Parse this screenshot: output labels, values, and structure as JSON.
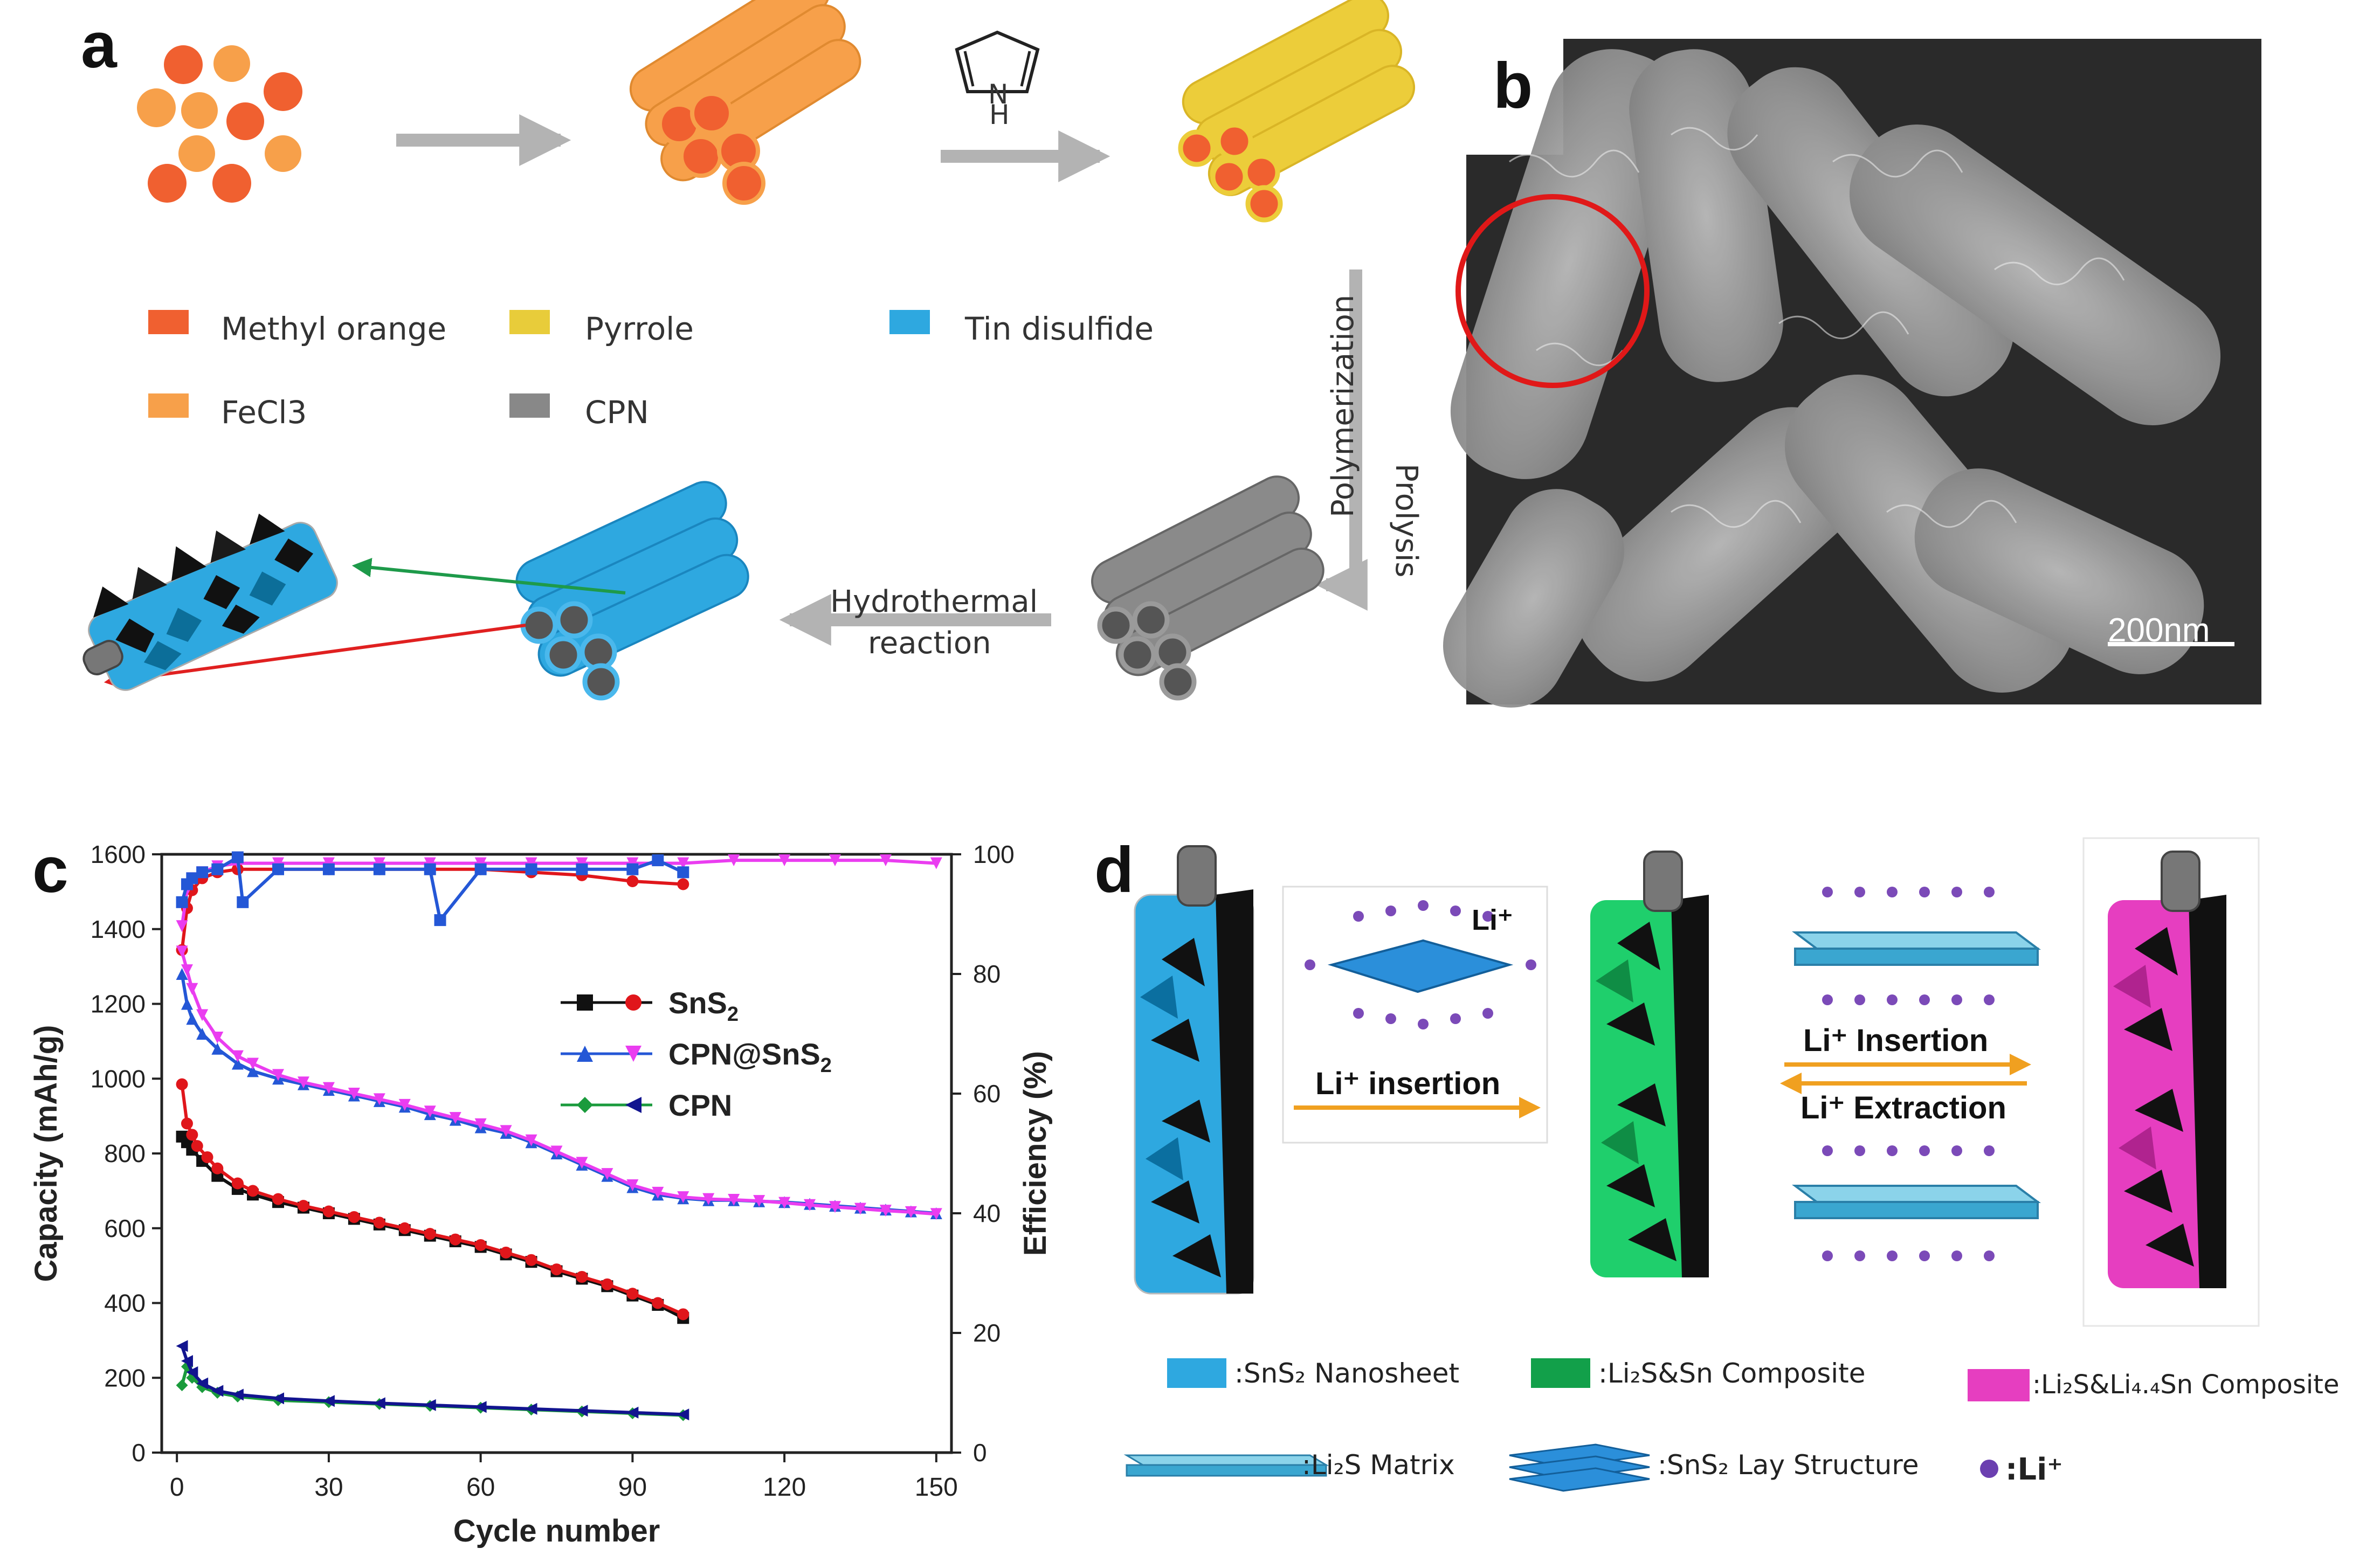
{
  "panel_letters": {
    "a": "a",
    "b": "b",
    "c": "c",
    "d": "d"
  },
  "panel_a": {
    "legend": [
      {
        "label": "Methyl orange",
        "color": "#f06030"
      },
      {
        "label": "Pyrrole",
        "color": "#e8cc3a"
      },
      {
        "label": "Tin disulfide",
        "color": "#2ea8e0"
      },
      {
        "label": "FeCl3",
        "color": "#f7a04a"
      },
      {
        "label": "CPN",
        "color": "#888888"
      }
    ],
    "pyrrole_label": "H",
    "pyrrole_label_n": "N",
    "step_vertical_1": "Polymerization",
    "step_vertical_2": "Prolysis",
    "step_hydro_1": "Hydrothermal",
    "step_hydro_2": "reaction"
  },
  "panel_b": {
    "scale_bar": "200nm"
  },
  "chart_data": {
    "type": "scatter",
    "xlabel": "Cycle number",
    "ylabel": "Capacity (mAh/g)",
    "y2label": "Efficiency (%)",
    "xlim": [
      -3,
      153
    ],
    "ylim": [
      0,
      1600
    ],
    "y2lim": [
      0,
      100
    ],
    "x_ticks": [
      "0",
      "30",
      "60",
      "90",
      "120",
      "150"
    ],
    "y_ticks": [
      "0",
      "200",
      "400",
      "600",
      "800",
      "1000",
      "1200",
      "1400",
      "1600"
    ],
    "y2_ticks": [
      "0",
      "20",
      "40",
      "60",
      "80",
      "100"
    ],
    "legend": [
      {
        "label_main": "SnS",
        "label_sub": "2",
        "colors": [
          "#111111",
          "#e0161b"
        ],
        "markers": [
          "square",
          "circle"
        ]
      },
      {
        "label_main": "CPN@SnS",
        "label_sub": "2",
        "colors": [
          "#2457d6",
          "#ea3df0"
        ],
        "markers": [
          "triangle-up",
          "triangle-down"
        ]
      },
      {
        "label_main": "CPN",
        "label_sub": "",
        "colors": [
          "#1a9b3c",
          "#12148f"
        ],
        "markers": [
          "diamond",
          "triangle-left"
        ]
      }
    ],
    "series": [
      {
        "name": "SnS2 capacity",
        "axis": "left",
        "color": "#111111",
        "marker": "square",
        "x": [
          1,
          2,
          3,
          5,
          8,
          12,
          15,
          20,
          25,
          30,
          35,
          40,
          45,
          50,
          55,
          60,
          65,
          70,
          75,
          80,
          85,
          90,
          95,
          100
        ],
        "y": [
          845,
          830,
          810,
          780,
          740,
          705,
          690,
          670,
          655,
          640,
          625,
          610,
          595,
          580,
          565,
          550,
          530,
          510,
          485,
          465,
          445,
          420,
          395,
          360
        ]
      },
      {
        "name": "SnS2 capacity (charge)",
        "axis": "left",
        "color": "#e0161b",
        "marker": "circle",
        "x": [
          1,
          2,
          3,
          4,
          6,
          8,
          12,
          15,
          20,
          25,
          30,
          35,
          40,
          45,
          50,
          55,
          60,
          65,
          70,
          75,
          80,
          85,
          90,
          95,
          100
        ],
        "y": [
          985,
          880,
          850,
          820,
          790,
          760,
          720,
          700,
          678,
          660,
          645,
          630,
          615,
          600,
          585,
          570,
          555,
          535,
          515,
          490,
          470,
          450,
          425,
          400,
          370
        ]
      },
      {
        "name": "SnS2 efficiency",
        "axis": "right",
        "color": "#e0161b",
        "marker": "circle",
        "x": [
          1,
          2,
          3,
          5,
          8,
          12,
          20,
          30,
          40,
          50,
          60,
          70,
          80,
          90,
          100
        ],
        "y": [
          84,
          91,
          94,
          96,
          97,
          97.5,
          97.5,
          97.5,
          97.5,
          97.5,
          97.5,
          97,
          96.5,
          95.5,
          95
        ]
      },
      {
        "name": "CPN@SnS2 capacity",
        "axis": "left",
        "color": "#2457d6",
        "marker": "triangle-up",
        "x": [
          1,
          2,
          3,
          5,
          8,
          12,
          15,
          20,
          25,
          30,
          35,
          40,
          45,
          50,
          55,
          60,
          65,
          70,
          75,
          80,
          85,
          90,
          95,
          100,
          105,
          110,
          115,
          120,
          125,
          130,
          135,
          140,
          145,
          150
        ],
        "y": [
          1280,
          1200,
          1160,
          1120,
          1080,
          1040,
          1020,
          1000,
          985,
          970,
          955,
          940,
          925,
          905,
          890,
          870,
          855,
          830,
          800,
          770,
          740,
          710,
          690,
          680,
          675,
          675,
          672,
          670,
          665,
          660,
          655,
          650,
          645,
          640
        ]
      },
      {
        "name": "CPN@SnS2 capacity (charge)",
        "axis": "left",
        "color": "#ea3df0",
        "marker": "triangle-down",
        "x": [
          1,
          2,
          3,
          5,
          8,
          12,
          15,
          20,
          25,
          30,
          35,
          40,
          45,
          50,
          55,
          60,
          65,
          70,
          75,
          80,
          85,
          90,
          95,
          100,
          105,
          110,
          115,
          120,
          125,
          130,
          135,
          140,
          145,
          150
        ],
        "y": [
          1340,
          1290,
          1240,
          1170,
          1110,
          1060,
          1040,
          1010,
          990,
          975,
          960,
          945,
          930,
          912,
          895,
          878,
          860,
          835,
          805,
          775,
          745,
          715,
          695,
          683,
          678,
          676,
          673,
          668,
          662,
          657,
          652,
          647,
          643,
          638
        ]
      },
      {
        "name": "CPN@SnS2 efficiency",
        "axis": "right",
        "color": "#ea3df0",
        "marker": "triangle-down",
        "x": [
          1,
          2,
          3,
          5,
          8,
          12,
          20,
          30,
          40,
          50,
          60,
          70,
          80,
          90,
          100,
          110,
          120,
          130,
          140,
          150
        ],
        "y": [
          88,
          94,
          96,
          97,
          98,
          98.5,
          98.5,
          98.5,
          98.5,
          98.5,
          98.5,
          98.5,
          98.5,
          98.5,
          98.5,
          99,
          99,
          99,
          99,
          98.5
        ]
      },
      {
        "name": "CPN capacity",
        "axis": "left",
        "color": "#1a9b3c",
        "marker": "diamond",
        "x": [
          1,
          2,
          3,
          5,
          8,
          12,
          20,
          30,
          40,
          50,
          60,
          70,
          80,
          90,
          100
        ],
        "y": [
          180,
          230,
          200,
          175,
          160,
          150,
          140,
          135,
          130,
          125,
          120,
          115,
          110,
          105,
          100
        ]
      },
      {
        "name": "CPN capacity (charge)",
        "axis": "left",
        "color": "#12148f",
        "marker": "triangle-left",
        "x": [
          1,
          2,
          3,
          5,
          8,
          12,
          20,
          30,
          40,
          50,
          60,
          70,
          80,
          90,
          100
        ],
        "y": [
          285,
          245,
          215,
          185,
          165,
          155,
          145,
          138,
          132,
          127,
          122,
          117,
          112,
          107,
          102
        ]
      },
      {
        "name": "CPN efficiency",
        "axis": "right",
        "color": "#2457d6",
        "marker": "square",
        "x": [
          1,
          2,
          3,
          5,
          8,
          12,
          13,
          20,
          30,
          40,
          50,
          52,
          60,
          70,
          80,
          90,
          95,
          100
        ],
        "y": [
          92,
          95,
          96,
          97,
          97.5,
          99.5,
          92,
          97.5,
          97.5,
          97.5,
          97.5,
          89,
          97.5,
          97.5,
          97.5,
          97.5,
          99,
          97
        ]
      }
    ]
  },
  "panel_d": {
    "arrow1": "Li⁺ insertion",
    "arrow2a": "Li⁺ Insertion",
    "arrow2b": "Li⁺ Extraction",
    "li_label": "Li⁺",
    "legend": [
      {
        "label": ":SnS₂ Nanosheet",
        "color": "#2ea8e0"
      },
      {
        "label": ":Li₂S&Sn Composite",
        "color": "#12a04a"
      },
      {
        "label": ":Li₂S&Li₄.₄Sn Composite",
        "color": "#e63ec0"
      },
      {
        "label": ":Li₂S Matrix",
        "color": "#6cc7e2"
      },
      {
        "label": ":SnS₂ Lay Structure",
        "color": "#1f7fd6"
      },
      {
        "label": ":Li⁺",
        "color": "#6b3fb0"
      }
    ]
  }
}
